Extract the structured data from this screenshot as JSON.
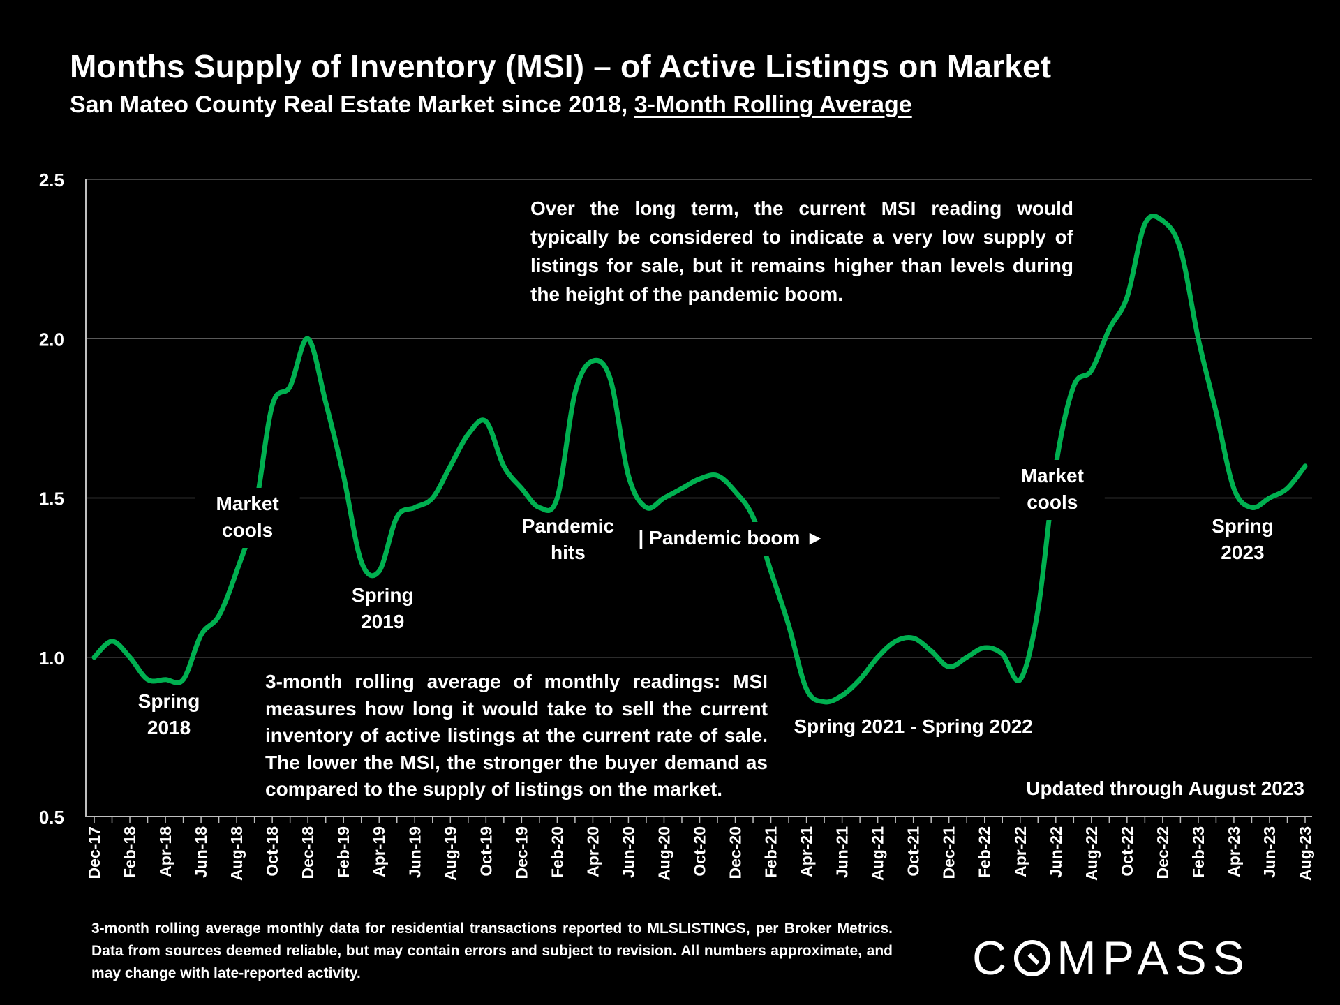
{
  "title": "Months Supply of Inventory (MSI) – of Active Listings on Market",
  "subtitle_plain": "San Mateo County Real Estate Market since 2018, ",
  "subtitle_underlined": "3-Month Rolling Average",
  "colors": {
    "background": "#000000",
    "line": "#00b050",
    "text": "#ffffff",
    "grid": "#595959"
  },
  "note_top": "Over the long term, the current MSI reading would typically be considered to indicate a very low supply of listings for sale, but it remains higher than levels during the height of the pandemic boom.",
  "note_bottom": "3-month rolling average of monthly readings: MSI measures how long it would take to sell the current inventory of active listings at the current rate of sale. The lower the MSI, the stronger the buyer demand as compared to the supply of listings on the market.",
  "footnote": "3-month rolling average monthly data for residential transactions reported to MLSLISTINGS, per Broker Metrics. Data from sources deemed reliable, but may contain errors and subject to revision. All numbers approximate, and may change with late-reported activity.",
  "logo": {
    "pre": "C",
    "post": "MPASS"
  },
  "chart_data": {
    "type": "line",
    "title": "Months Supply of Inventory (MSI) – of Active Listings on Market",
    "xlabel": "",
    "ylabel": "",
    "ylim": [
      0.5,
      2.5
    ],
    "yticks": [
      0.5,
      1.0,
      1.5,
      2.0,
      2.5
    ],
    "ytick_labels": [
      "0.5",
      "1.0",
      "1.5",
      "2.0",
      "2.5"
    ],
    "grid": true,
    "x": [
      "Dec-17",
      "Jan-18",
      "Feb-18",
      "Mar-18",
      "Apr-18",
      "May-18",
      "Jun-18",
      "Jul-18",
      "Aug-18",
      "Sep-18",
      "Oct-18",
      "Nov-18",
      "Dec-18",
      "Jan-19",
      "Feb-19",
      "Mar-19",
      "Apr-19",
      "May-19",
      "Jun-19",
      "Jul-19",
      "Aug-19",
      "Sep-19",
      "Oct-19",
      "Nov-19",
      "Dec-19",
      "Jan-20",
      "Feb-20",
      "Mar-20",
      "Apr-20",
      "May-20",
      "Jun-20",
      "Jul-20",
      "Aug-20",
      "Sep-20",
      "Oct-20",
      "Nov-20",
      "Dec-20",
      "Jan-21",
      "Feb-21",
      "Mar-21",
      "Apr-21",
      "May-21",
      "Jun-21",
      "Jul-21",
      "Aug-21",
      "Sep-21",
      "Oct-21",
      "Nov-21",
      "Dec-21",
      "Jan-22",
      "Feb-22",
      "Mar-22",
      "Apr-22",
      "May-22",
      "Jun-22",
      "Jul-22",
      "Aug-22",
      "Sep-22",
      "Oct-22",
      "Nov-22",
      "Dec-22",
      "Jan-23",
      "Feb-23",
      "Mar-23",
      "Apr-23",
      "May-23",
      "Jun-23",
      "Jul-23",
      "Aug-23"
    ],
    "x_tick_labels": [
      "Dec-17",
      "Feb-18",
      "Apr-18",
      "Jun-18",
      "Aug-18",
      "Oct-18",
      "Dec-18",
      "Feb-19",
      "Apr-19",
      "Jun-19",
      "Aug-19",
      "Oct-19",
      "Dec-19",
      "Feb-20",
      "Apr-20",
      "Jun-20",
      "Aug-20",
      "Oct-20",
      "Dec-20",
      "Feb-21",
      "Apr-21",
      "Jun-21",
      "Aug-21",
      "Oct-21",
      "Dec-21",
      "Feb-22",
      "Apr-22",
      "Jun-22",
      "Aug-22",
      "Oct-22",
      "Dec-22",
      "Feb-23",
      "Apr-23",
      "Jun-23",
      "Aug-23"
    ],
    "series": [
      {
        "name": "MSI 3-month rolling average",
        "values": [
          1.0,
          1.05,
          1.0,
          0.93,
          0.93,
          0.93,
          1.07,
          1.13,
          1.27,
          1.45,
          1.79,
          1.85,
          2.0,
          1.8,
          1.57,
          1.3,
          1.27,
          1.44,
          1.47,
          1.5,
          1.6,
          1.7,
          1.74,
          1.6,
          1.53,
          1.47,
          1.5,
          1.83,
          1.93,
          1.87,
          1.57,
          1.47,
          1.5,
          1.53,
          1.56,
          1.57,
          1.52,
          1.44,
          1.27,
          1.1,
          0.9,
          0.86,
          0.88,
          0.93,
          1.0,
          1.05,
          1.06,
          1.02,
          0.97,
          1.0,
          1.03,
          1.01,
          0.93,
          1.15,
          1.6,
          1.85,
          1.9,
          2.03,
          2.13,
          2.36,
          2.37,
          2.28,
          2.0,
          1.77,
          1.53,
          1.47,
          1.5,
          1.53,
          1.6
        ]
      }
    ],
    "annotations": [
      {
        "label": [
          "Spring",
          "2018"
        ],
        "at": "Apr-18"
      },
      {
        "label": [
          "Market",
          "cools"
        ],
        "at": "Sep-18"
      },
      {
        "label": [
          "Spring",
          "2019"
        ],
        "at": "Apr-19"
      },
      {
        "label": [
          "Pandemic",
          "hits"
        ],
        "at": "Mar-20"
      },
      {
        "label": [
          "| Pandemic boom ►"
        ],
        "at": "Feb-21"
      },
      {
        "label": [
          "Spring 2021 - Spring 2022"
        ],
        "at": "Oct-21"
      },
      {
        "label": [
          "Market",
          "cools"
        ],
        "at": "Jun-22"
      },
      {
        "label": [
          "Spring",
          "2023"
        ],
        "at": "May-23"
      },
      {
        "label": [
          "Updated through August 2023"
        ],
        "at": "Aug-23"
      }
    ]
  }
}
